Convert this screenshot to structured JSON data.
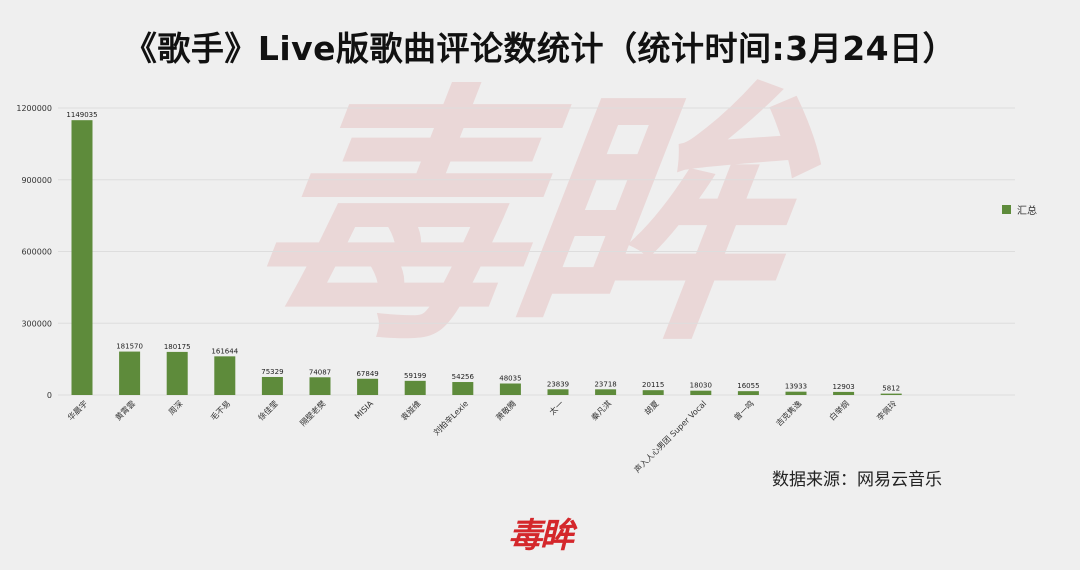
{
  "title": "《歌手》Live版歌曲评论数统计（统计时间:3月24日）",
  "watermark": "毒眸",
  "logo": "毒眸",
  "source": "数据来源：网易云音乐",
  "colors": {
    "bar": "#5e8b3b",
    "grid": "#dddddd",
    "logo": "#d4272b"
  },
  "chart_data": {
    "type": "bar",
    "categories": [
      "华晨宇",
      "黄霄雲",
      "周深",
      "毛不易",
      "徐佳莹",
      "隔壁老樊",
      "MISIA",
      "袁娅维",
      "刘柏辛Lexie",
      "萧敬腾",
      "太一",
      "秦凡淇",
      "胡夏",
      "声入人心男团 Super Vocal",
      "曾一鸣",
      "吉克隽逸",
      "白举纲",
      "李佩玲"
    ],
    "series": [
      {
        "name": "汇总",
        "values": [
          1149035,
          181570,
          180175,
          161644,
          75329,
          74087,
          67849,
          59199,
          54256,
          48035,
          23839,
          23718,
          20115,
          18030,
          16055,
          13933,
          12903,
          5812
        ]
      }
    ],
    "yticks": [
      0,
      300000,
      600000,
      900000,
      1200000
    ],
    "ylim": [
      0,
      1200000
    ],
    "grid": true,
    "legend_position": "right"
  }
}
